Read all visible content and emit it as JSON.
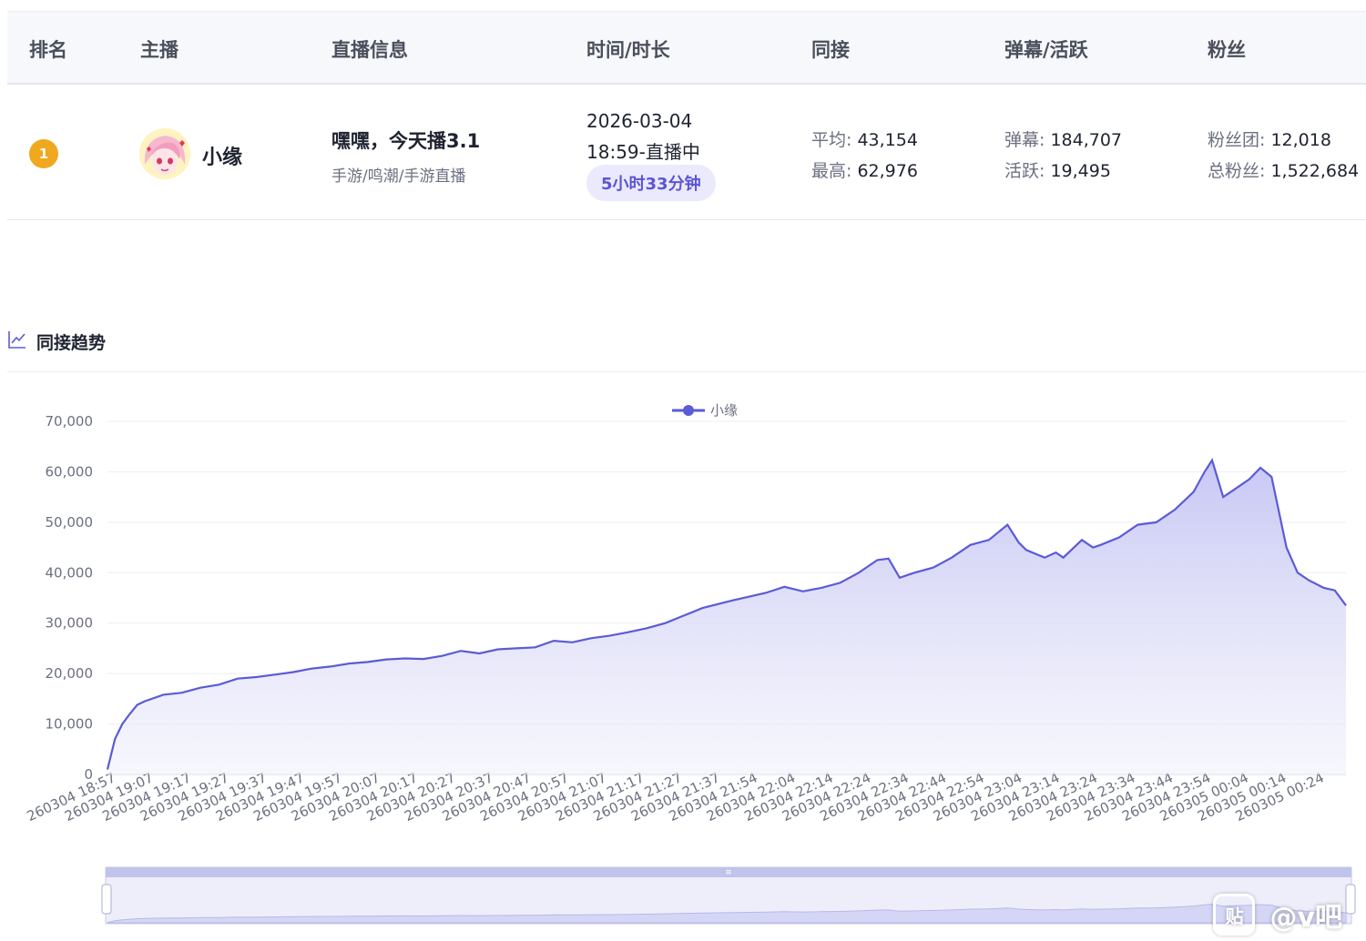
{
  "table": {
    "headers": [
      "排名",
      "主播",
      "直播信息",
      "时间/时长",
      "同接",
      "弹幕/活跃",
      "粉丝"
    ],
    "row": {
      "rank": "1",
      "streamer": "小缘",
      "live_title": "嘿嘿，今天播3.1",
      "live_category": "手游/鸣潮/手游直播",
      "date": "2026-03-04",
      "start_status": "18:59-直播中",
      "duration": "5小时33分钟",
      "concurrent": {
        "avg_label": "平均:",
        "avg": "43,154",
        "max_label": "最高:",
        "max": "62,976"
      },
      "danmaku": {
        "danmu_label": "弹幕:",
        "danmu": "184,707",
        "active_label": "活跃:",
        "active": "19,495"
      },
      "fans": {
        "club_label": "粉丝团:",
        "club": "12,018",
        "total_label": "总粉丝:",
        "total": "1,522,684"
      }
    }
  },
  "section": {
    "title": "同接趋势",
    "icon": "line-chart-icon"
  },
  "colors": {
    "accent": "#5b5bd6",
    "badge": "#f0a81e",
    "fill_top": "#c9c9f5",
    "fill_bottom": "#f3f3fd"
  },
  "chart_data": {
    "type": "area",
    "series": [
      {
        "name": "小缘"
      }
    ],
    "legend_position": "top-center",
    "ylim": [
      0,
      70000
    ],
    "y_ticks": [
      "0",
      "10,000",
      "20,000",
      "30,000",
      "40,000",
      "50,000",
      "60,000",
      "70,000"
    ],
    "x_tick_labels": [
      "260304 18:57",
      "260304 19:07",
      "260304 19:17",
      "260304 19:27",
      "260304 19:37",
      "260304 19:47",
      "260304 19:57",
      "260304 20:07",
      "260304 20:17",
      "260304 20:27",
      "260304 20:37",
      "260304 20:47",
      "260304 20:57",
      "260304 21:07",
      "260304 21:17",
      "260304 21:27",
      "260304 21:37",
      "260304 21:54",
      "260304 22:04",
      "260304 22:14",
      "260304 22:24",
      "260304 22:34",
      "260304 22:44",
      "260304 22:54",
      "260304 23:04",
      "260304 23:14",
      "260304 23:24",
      "260304 23:34",
      "260304 23:44",
      "260304 23:54",
      "260305 00:04",
      "260305 00:14",
      "260305 00:24"
    ],
    "points": [
      [
        "260304 18:57",
        1000
      ],
      [
        "260304 18:59",
        7000
      ],
      [
        "260304 19:01",
        10000
      ],
      [
        "260304 19:03",
        12000
      ],
      [
        "260304 19:05",
        13800
      ],
      [
        "260304 19:07",
        14500
      ],
      [
        "260304 19:12",
        15800
      ],
      [
        "260304 19:17",
        16200
      ],
      [
        "260304 19:22",
        17200
      ],
      [
        "260304 19:27",
        17800
      ],
      [
        "260304 19:32",
        19000
      ],
      [
        "260304 19:37",
        19300
      ],
      [
        "260304 19:42",
        19800
      ],
      [
        "260304 19:47",
        20300
      ],
      [
        "260304 19:52",
        21000
      ],
      [
        "260304 19:57",
        21400
      ],
      [
        "260304 20:02",
        22000
      ],
      [
        "260304 20:07",
        22300
      ],
      [
        "260304 20:12",
        22800
      ],
      [
        "260304 20:17",
        23000
      ],
      [
        "260304 20:22",
        22900
      ],
      [
        "260304 20:27",
        23500
      ],
      [
        "260304 20:32",
        24500
      ],
      [
        "260304 20:37",
        24000
      ],
      [
        "260304 20:42",
        24800
      ],
      [
        "260304 20:47",
        25000
      ],
      [
        "260304 20:52",
        25200
      ],
      [
        "260304 20:57",
        26500
      ],
      [
        "260304 21:02",
        26200
      ],
      [
        "260304 21:07",
        27000
      ],
      [
        "260304 21:12",
        27500
      ],
      [
        "260304 21:17",
        28200
      ],
      [
        "260304 21:22",
        29000
      ],
      [
        "260304 21:27",
        30000
      ],
      [
        "260304 21:32",
        31500
      ],
      [
        "260304 21:37",
        33000
      ],
      [
        "260304 21:45",
        34500
      ],
      [
        "260304 21:54",
        36000
      ],
      [
        "260304 21:59",
        37200
      ],
      [
        "260304 22:04",
        36300
      ],
      [
        "260304 22:09",
        37000
      ],
      [
        "260304 22:14",
        38000
      ],
      [
        "260304 22:19",
        40000
      ],
      [
        "260304 22:24",
        42500
      ],
      [
        "260304 22:27",
        42800
      ],
      [
        "260304 22:30",
        39000
      ],
      [
        "260304 22:34",
        40000
      ],
      [
        "260304 22:39",
        41000
      ],
      [
        "260304 22:44",
        43000
      ],
      [
        "260304 22:49",
        45500
      ],
      [
        "260304 22:54",
        46500
      ],
      [
        "260304 22:59",
        49500
      ],
      [
        "260304 23:02",
        46000
      ],
      [
        "260304 23:04",
        44500
      ],
      [
        "260304 23:09",
        43000
      ],
      [
        "260304 23:12",
        44000
      ],
      [
        "260304 23:14",
        43000
      ],
      [
        "260304 23:19",
        46500
      ],
      [
        "260304 23:22",
        45000
      ],
      [
        "260304 23:24",
        45500
      ],
      [
        "260304 23:29",
        47000
      ],
      [
        "260304 23:34",
        49500
      ],
      [
        "260304 23:39",
        50000
      ],
      [
        "260304 23:44",
        52500
      ],
      [
        "260304 23:49",
        56000
      ],
      [
        "260304 23:52",
        60000
      ],
      [
        "260304 23:54",
        62300
      ],
      [
        "260304 23:57",
        55000
      ],
      [
        "260305 00:00",
        56500
      ],
      [
        "260305 00:04",
        58500
      ],
      [
        "260305 00:07",
        60800
      ],
      [
        "260305 00:10",
        59000
      ],
      [
        "260305 00:14",
        45000
      ],
      [
        "260305 00:17",
        40000
      ],
      [
        "260305 00:20",
        38500
      ],
      [
        "260305 00:24",
        37000
      ],
      [
        "260305 00:27",
        36500
      ],
      [
        "260305 00:30",
        33500
      ]
    ]
  },
  "watermark": {
    "icon_text": "贴",
    "text": "@v吧"
  }
}
